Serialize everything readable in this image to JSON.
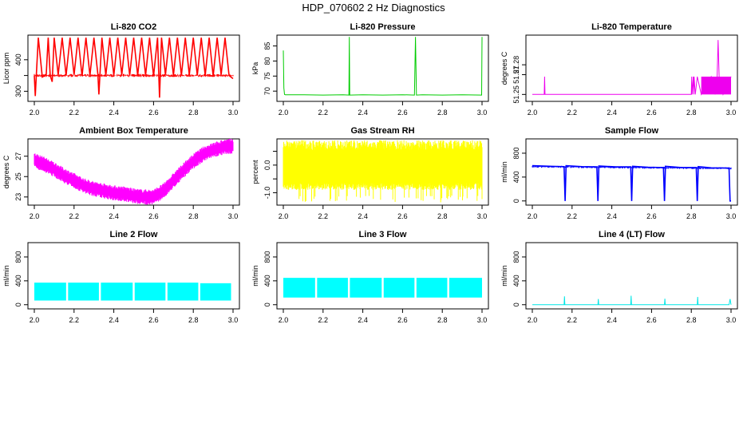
{
  "page_title": "HDP_070602  2 Hz Diagnostics",
  "chart_data": [
    {
      "type": "line",
      "title": "Li-820 CO2",
      "ylabel": "Licor ppm",
      "xlim": [
        2.0,
        3.0
      ],
      "ylim": [
        268,
        478
      ],
      "xticks": [
        "2.0",
        "2.2",
        "2.4",
        "2.6",
        "2.8",
        "3.0"
      ],
      "yticks": [
        300,
        350,
        400
      ],
      "ytick_labels": [
        "300",
        "",
        "400"
      ],
      "color": "#ff0000",
      "series": [
        {
          "x": [
            2.0,
            2.005,
            2.01,
            2.02,
            2.04,
            2.06,
            2.07,
            2.08,
            2.09,
            2.1,
            2.12,
            2.14,
            2.16,
            2.18,
            2.2,
            2.22,
            2.24,
            2.26,
            2.28,
            2.3,
            2.32,
            2.325,
            2.34,
            2.36,
            2.38,
            2.4,
            2.42,
            2.44,
            2.46,
            2.48,
            2.5,
            2.52,
            2.54,
            2.56,
            2.58,
            2.6,
            2.62,
            2.63,
            2.64,
            2.66,
            2.68,
            2.7,
            2.72,
            2.74,
            2.76,
            2.78,
            2.8,
            2.82,
            2.84,
            2.86,
            2.88,
            2.9,
            2.92,
            2.94,
            2.96,
            2.98,
            3.0
          ],
          "y": [
            350,
            285,
            350,
            470,
            345,
            352,
            470,
            350,
            330,
            470,
            352,
            470,
            350,
            470,
            352,
            470,
            348,
            470,
            350,
            470,
            352,
            290,
            470,
            350,
            470,
            350,
            470,
            352,
            470,
            350,
            470,
            350,
            470,
            350,
            470,
            348,
            470,
            280,
            470,
            352,
            470,
            350,
            470,
            350,
            470,
            352,
            470,
            350,
            470,
            350,
            470,
            348,
            470,
            352,
            470,
            350,
            340
          ]
        }
      ]
    },
    {
      "type": "line",
      "title": "Li-820 Pressure",
      "ylabel": "kPa",
      "xlim": [
        2.0,
        3.0
      ],
      "ylim": [
        66.6,
        88.6
      ],
      "xticks": [
        "2.0",
        "2.2",
        "2.4",
        "2.6",
        "2.8",
        "3.0"
      ],
      "yticks": [
        70,
        75,
        80,
        85
      ],
      "ytick_labels": [
        "70",
        "75",
        "80",
        "85"
      ],
      "color": "#00cc00",
      "series": [
        {
          "x": [
            2.0,
            2.003,
            2.006,
            2.01,
            2.1,
            2.2,
            2.3,
            2.33,
            2.332,
            2.334,
            2.4,
            2.5,
            2.6,
            2.66,
            2.665,
            2.67,
            2.7,
            2.8,
            2.9,
            2.998,
            3.0
          ],
          "y": [
            83.5,
            71.0,
            68.9,
            68.8,
            68.8,
            68.7,
            68.8,
            68.7,
            88.0,
            68.7,
            68.8,
            68.7,
            68.8,
            68.7,
            88.0,
            68.7,
            68.8,
            68.7,
            68.8,
            68.7,
            88.0
          ]
        }
      ]
    },
    {
      "type": "line",
      "title": "Li-820 Temperature",
      "ylabel": "degrees C",
      "xlim": [
        2.0,
        3.0
      ],
      "ylim": [
        51.243,
        51.31
      ],
      "xticks": [
        "2.0",
        "2.2",
        "2.4",
        "2.6",
        "2.8",
        "3.0"
      ],
      "yticks": [
        51.25,
        51.27,
        51.28
      ],
      "ytick_labels": [
        "51.25",
        "51.27",
        "51.28"
      ],
      "color": "#ee00ee",
      "series": [
        {
          "x": [
            2.0,
            2.06,
            2.062,
            2.064,
            2.5,
            2.8,
            2.802,
            2.804,
            2.81,
            2.812,
            2.814,
            2.82,
            2.83,
            2.85,
            2.9,
            2.92,
            2.93,
            2.935,
            2.94,
            2.96,
            3.0
          ],
          "y": [
            51.25,
            51.25,
            51.268,
            51.25,
            51.25,
            51.25,
            51.268,
            51.25,
            51.268,
            51.25,
            51.268,
            51.25,
            51.268,
            51.25,
            51.268,
            51.25,
            51.268,
            51.305,
            51.268,
            51.25,
            51.268
          ]
        }
      ]
    },
    {
      "type": "line",
      "title": "Ambient Box Temperature",
      "ylabel": "degrees C",
      "xlim": [
        2.0,
        3.0
      ],
      "ylim": [
        22.2,
        28.7
      ],
      "xticks": [
        "2.0",
        "2.2",
        "2.4",
        "2.6",
        "2.8",
        "3.0"
      ],
      "yticks": [
        23,
        25,
        27
      ],
      "ytick_labels": [
        "23",
        "25",
        "27"
      ],
      "color": "#ff00ff",
      "series": [
        {
          "x": [
            2.0,
            2.05,
            2.1,
            2.15,
            2.2,
            2.25,
            2.3,
            2.35,
            2.4,
            2.45,
            2.5,
            2.55,
            2.6,
            2.65,
            2.7,
            2.75,
            2.8,
            2.85,
            2.9,
            2.95,
            3.0
          ],
          "y": [
            26.6,
            26.2,
            25.7,
            25.1,
            24.6,
            24.1,
            23.8,
            23.6,
            23.4,
            23.3,
            23.1,
            23.0,
            23.0,
            23.6,
            24.6,
            25.6,
            26.5,
            27.2,
            27.6,
            27.9,
            28.0
          ]
        }
      ]
    },
    {
      "type": "line",
      "title": "Gas Stream RH",
      "ylabel": "percent",
      "xlim": [
        2.0,
        3.0
      ],
      "ylim": [
        -1.45,
        0.95
      ],
      "xticks": [
        "2.0",
        "2.2",
        "2.4",
        "2.6",
        "2.8",
        "3.0"
      ],
      "yticks": [
        -1.0,
        -0.5,
        0.0,
        0.5
      ],
      "ytick_labels": [
        "-1.0",
        "",
        "0.0",
        ""
      ],
      "color": "#ffff00",
      "series": [
        {
          "x": [
            2.0,
            2.1,
            2.2,
            2.3,
            2.4,
            2.5,
            2.6,
            2.7,
            2.8,
            2.9,
            3.0
          ],
          "y": [
            0.0,
            0.05,
            -0.05,
            0.0,
            0.05,
            -0.05,
            0.0,
            0.05,
            -0.05,
            0.0,
            0.05
          ]
        }
      ]
    },
    {
      "type": "line",
      "title": "Sample Flow",
      "ylabel": "ml/min",
      "xlim": [
        2.0,
        3.0
      ],
      "ylim": [
        -70,
        1040
      ],
      "xticks": [
        "2.0",
        "2.2",
        "2.4",
        "2.6",
        "2.8",
        "3.0"
      ],
      "yticks": [
        0,
        400,
        800
      ],
      "ytick_labels": [
        "0",
        "400",
        "800"
      ],
      "color": "#0000ff",
      "series": [
        {
          "x": [
            2.0,
            2.1,
            2.16,
            2.165,
            2.17,
            2.25,
            2.325,
            2.33,
            2.335,
            2.42,
            2.495,
            2.5,
            2.505,
            2.58,
            2.66,
            2.665,
            2.67,
            2.75,
            2.825,
            2.83,
            2.835,
            2.9,
            2.99,
            2.995,
            3.0
          ],
          "y": [
            590,
            580,
            575,
            0,
            590,
            575,
            570,
            0,
            585,
            570,
            570,
            0,
            580,
            565,
            560,
            0,
            580,
            560,
            560,
            0,
            575,
            555,
            550,
            0,
            0
          ]
        }
      ]
    },
    {
      "type": "line",
      "title": "Line 2 Flow",
      "ylabel": "ml/min",
      "xlim": [
        2.0,
        3.0
      ],
      "ylim": [
        -70,
        1040
      ],
      "xticks": [
        "2.0",
        "2.2",
        "2.4",
        "2.6",
        "2.8",
        "3.0"
      ],
      "yticks": [
        0,
        400,
        800
      ],
      "ytick_labels": [
        "0",
        "400",
        "800"
      ],
      "color": "#00ffff",
      "bands": [
        [
          2.0,
          2.16,
          70,
          370
        ],
        [
          2.17,
          2.325,
          70,
          370
        ],
        [
          2.335,
          2.495,
          70,
          370
        ],
        [
          2.505,
          2.66,
          70,
          370
        ],
        [
          2.67,
          2.825,
          70,
          370
        ],
        [
          2.835,
          2.99,
          70,
          360
        ]
      ],
      "series": [
        {
          "x": [
            2.0,
            2.2,
            2.4,
            2.6,
            2.8,
            3.0
          ],
          "y": [
            220,
            220,
            220,
            220,
            220,
            220
          ]
        }
      ]
    },
    {
      "type": "line",
      "title": "Line 3 Flow",
      "ylabel": "ml/min",
      "xlim": [
        2.0,
        3.0
      ],
      "ylim": [
        -70,
        1040
      ],
      "xticks": [
        "2.0",
        "2.2",
        "2.4",
        "2.6",
        "2.8",
        "3.0"
      ],
      "yticks": [
        0,
        400,
        800
      ],
      "ytick_labels": [
        "0",
        "400",
        "800"
      ],
      "color": "#00ffff",
      "bands": [
        [
          2.0,
          2.16,
          120,
          450
        ],
        [
          2.17,
          2.325,
          120,
          450
        ],
        [
          2.335,
          2.495,
          120,
          450
        ],
        [
          2.505,
          2.66,
          120,
          450
        ],
        [
          2.67,
          2.825,
          120,
          450
        ],
        [
          2.835,
          3.0,
          120,
          450
        ]
      ],
      "series": [
        {
          "x": [
            2.0,
            2.2,
            2.4,
            2.6,
            2.8,
            3.0
          ],
          "y": [
            280,
            280,
            280,
            280,
            280,
            280
          ]
        }
      ]
    },
    {
      "type": "line",
      "title": "Line 4 (LT) Flow",
      "ylabel": "ml/min",
      "xlim": [
        2.0,
        3.0
      ],
      "ylim": [
        -70,
        1040
      ],
      "xticks": [
        "2.0",
        "2.2",
        "2.4",
        "2.6",
        "2.8",
        "3.0"
      ],
      "yticks": [
        0,
        400,
        800
      ],
      "ytick_labels": [
        "0",
        "400",
        "800"
      ],
      "color": "#00e6e6",
      "series": [
        {
          "x": [
            2.0,
            2.16,
            2.162,
            2.164,
            2.33,
            2.332,
            2.334,
            2.495,
            2.497,
            2.499,
            2.665,
            2.667,
            2.669,
            2.83,
            2.832,
            2.834,
            2.99,
            2.995,
            3.0
          ],
          "y": [
            0,
            0,
            140,
            0,
            0,
            95,
            0,
            0,
            150,
            0,
            0,
            100,
            0,
            0,
            130,
            0,
            0,
            95,
            0
          ]
        }
      ]
    }
  ]
}
